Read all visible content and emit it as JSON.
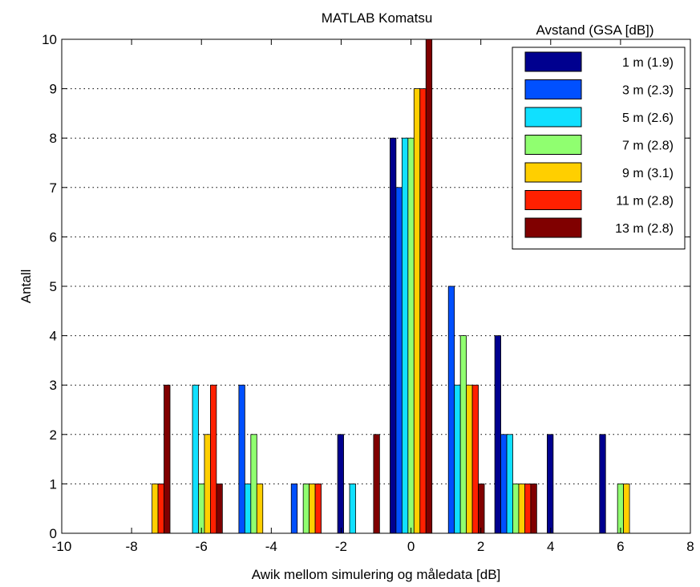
{
  "chart_data": {
    "type": "bar",
    "title": "MATLAB Komatsu",
    "xlabel": "Awik mellom simulering og måledata [dB]",
    "ylabel": "Antall",
    "legend_title": "Avstand (GSA [dB])",
    "legend_position": "top-right",
    "xlim": [
      -10,
      8
    ],
    "ylim": [
      0,
      10
    ],
    "xticks": [
      -10,
      -8,
      -6,
      -4,
      -2,
      0,
      2,
      4,
      6,
      8
    ],
    "yticks": [
      0,
      1,
      2,
      3,
      4,
      5,
      6,
      7,
      8,
      9,
      10
    ],
    "grid": "horizontal dotted",
    "bin_width": 1.5,
    "bin_centers": [
      -7.5,
      -6,
      -4.5,
      -3,
      -1.5,
      0,
      1.5,
      3,
      4.5,
      6,
      7.5
    ],
    "series": [
      {
        "name": "1 m (1.9)",
        "color": "#00008f",
        "values": [
          0,
          0,
          0,
          0,
          2,
          8,
          0,
          4,
          2,
          2,
          0
        ]
      },
      {
        "name": "3 m (2.3)",
        "color": "#0050ff",
        "values": [
          0,
          0,
          3,
          1,
          0,
          7,
          5,
          2,
          0,
          0,
          0
        ]
      },
      {
        "name": "5 m (2.6)",
        "color": "#10e0ff",
        "values": [
          0,
          3,
          1,
          0,
          1,
          8,
          3,
          2,
          0,
          0,
          0
        ]
      },
      {
        "name": "7 m (2.8)",
        "color": "#90ff70",
        "values": [
          0,
          1,
          2,
          1,
          0,
          8,
          4,
          1,
          0,
          1,
          0
        ]
      },
      {
        "name": "9 m (3.1)",
        "color": "#ffcf00",
        "values": [
          1,
          2,
          1,
          1,
          0,
          9,
          3,
          1,
          0,
          1,
          0
        ]
      },
      {
        "name": "11 m (2.8)",
        "color": "#ff2000",
        "values": [
          1,
          3,
          0,
          1,
          0,
          9,
          3,
          1,
          0,
          0,
          0
        ]
      },
      {
        "name": "13 m (2.8)",
        "color": "#800000",
        "values": [
          3,
          1,
          0,
          0,
          2,
          10,
          1,
          1,
          0,
          0,
          0
        ]
      }
    ]
  }
}
